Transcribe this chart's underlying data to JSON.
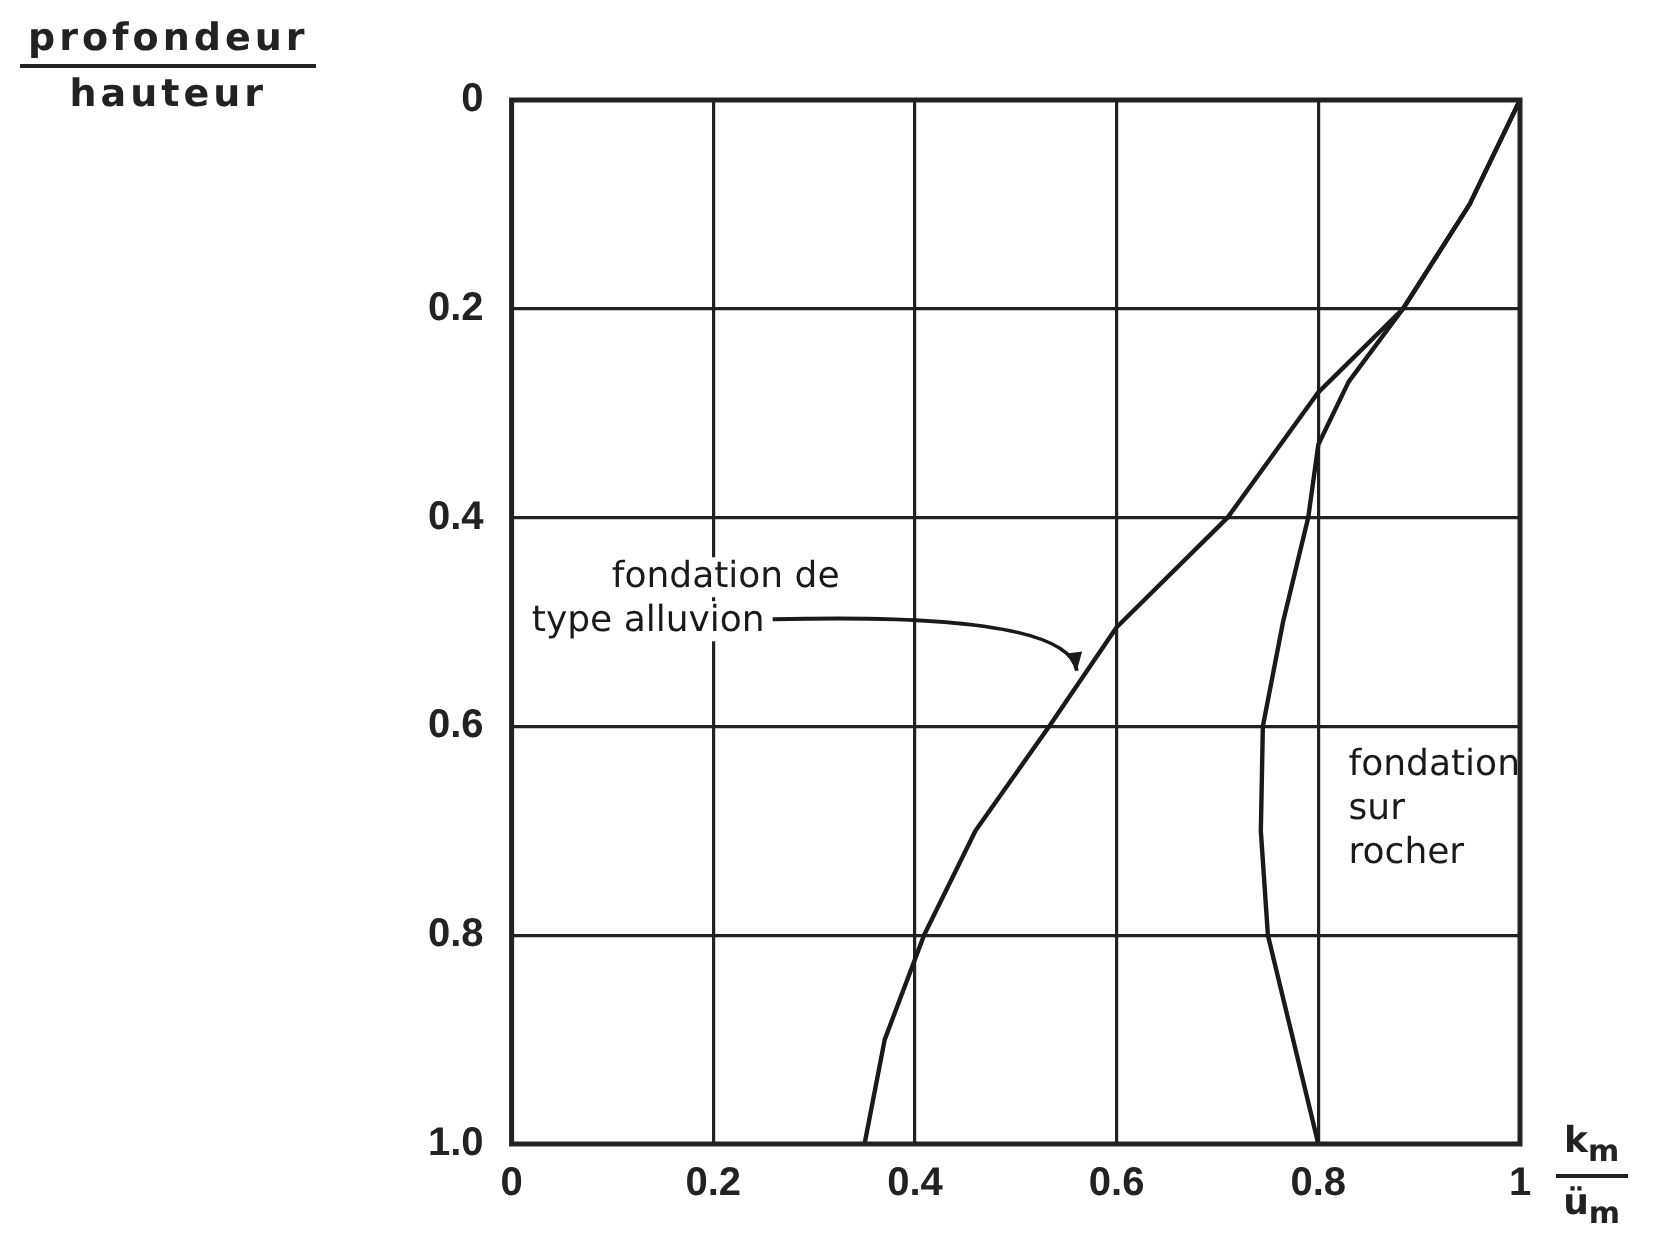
{
  "chart_data": {
    "type": "line",
    "xlabel": "k$_{m}$\nü$_{m}$",
    "ylabel": "profondeur\nhauteur",
    "series": [
      {
        "name": "fondation de type alluvion",
        "color": "#1a1a1a",
        "x": [
          1,
          0.95,
          0.884,
          0.8,
          0.71,
          0.6,
          0.533,
          0.46,
          0.409,
          0.37,
          0.35
        ],
        "values": [
          0,
          0.1,
          0.2,
          0.28,
          0.4,
          0.505,
          0.6,
          0.7,
          0.8,
          0.9,
          1.0
        ]
      },
      {
        "name": "fondation sur rocher",
        "color": "#1a1a1a",
        "x": [
          1,
          0.95,
          0.884,
          0.83,
          0.8,
          0.79,
          0.765,
          0.745,
          0.743,
          0.75,
          0.775,
          0.8
        ],
        "values": [
          0,
          0.1,
          0.2,
          0.27,
          0.33,
          0.4,
          0.5,
          0.6,
          0.7,
          0.8,
          0.9,
          1.0
        ]
      }
    ],
    "xlim": [
      0,
      1
    ],
    "ylim": [
      1,
      0
    ],
    "xticks": [
      0,
      0.2,
      0.4,
      0.6,
      0.8,
      1
    ],
    "yticks": [
      0,
      0.2,
      0.4,
      0.6,
      0.8,
      {
        "value": 1,
        "label": "1.0"
      }
    ],
    "grid": true,
    "legend": false,
    "marker": "none",
    "line_style": "solid"
  }
}
